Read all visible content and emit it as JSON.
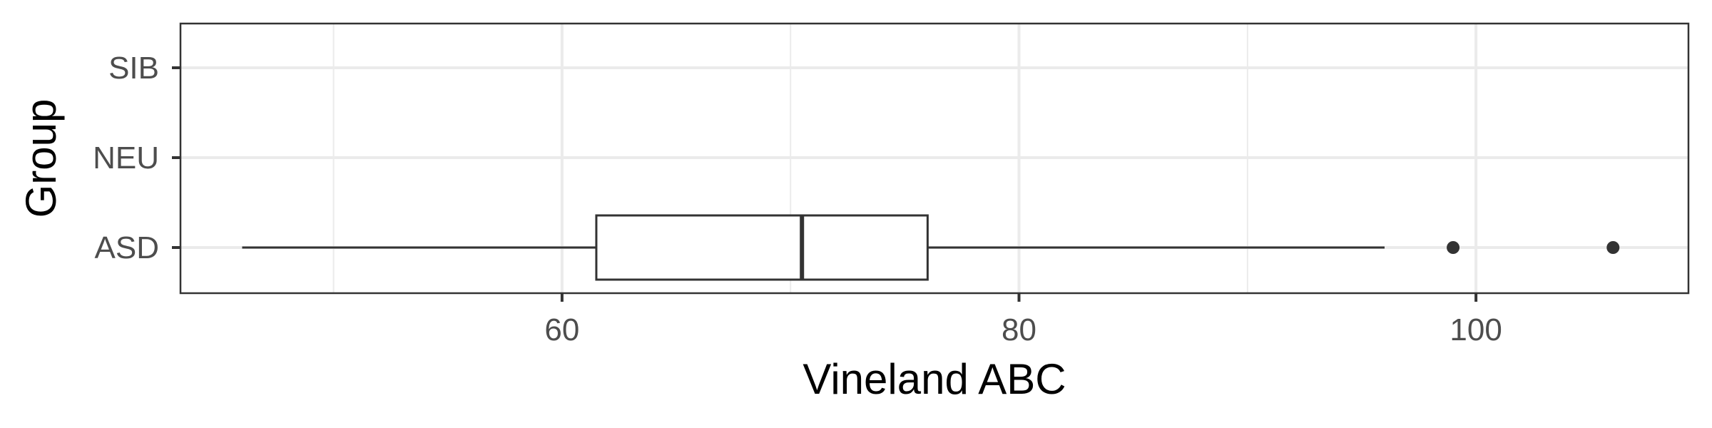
{
  "chart_data": {
    "type": "boxplot",
    "orientation": "horizontal",
    "title": "",
    "xlabel": "Vineland ABC",
    "ylabel": "Group",
    "xlim": [
      43.3,
      109.3
    ],
    "x_ticks": [
      60,
      80,
      100
    ],
    "x_minor_ticks": [
      50,
      70,
      90
    ],
    "categories": [
      "ASD",
      "NEU",
      "SIB"
    ],
    "series": [
      {
        "group": "ASD",
        "whisker_low": 46,
        "q1": 61.5,
        "median": 70.5,
        "q3": 76,
        "whisker_high": 96,
        "outliers": [
          99,
          106
        ]
      }
    ],
    "grid": true,
    "legend": "none",
    "colors": {
      "box_stroke": "#333333",
      "box_fill": "#ffffff",
      "grid": "#ebebeb",
      "panel_border": "#333333",
      "tick_text": "#4d4d4d",
      "title_text": "#000000"
    }
  }
}
